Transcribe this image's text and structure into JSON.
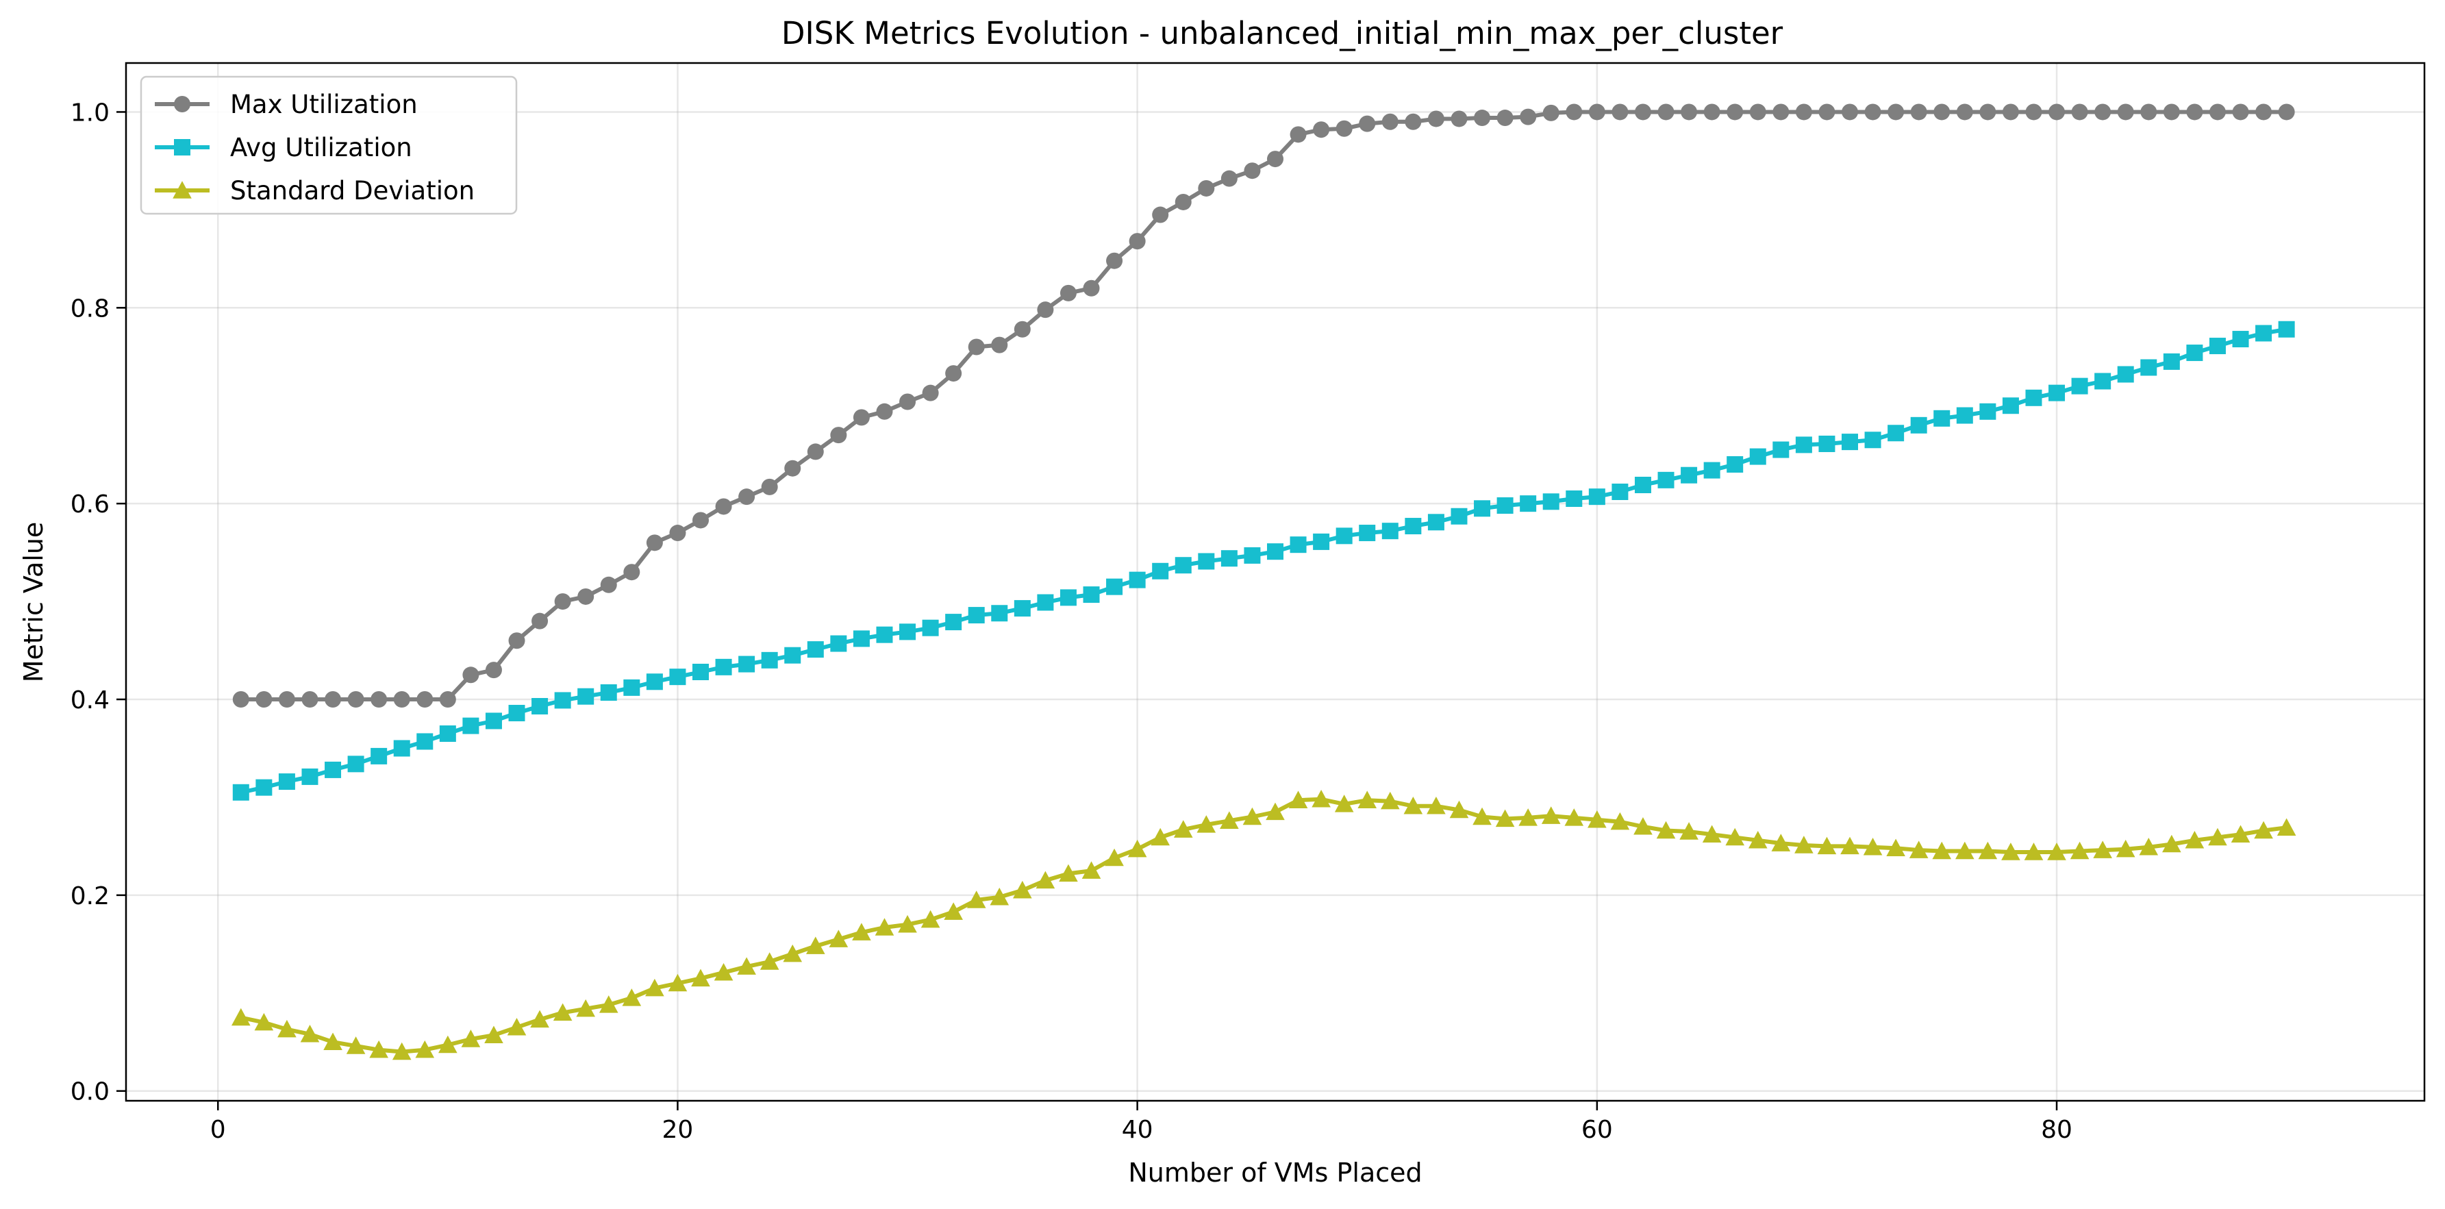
{
  "chart_data": {
    "type": "line",
    "title": "DISK Metrics Evolution - unbalanced_initial_min_max_per_cluster",
    "xlabel": "Number of VMs Placed",
    "ylabel": "Metric Value",
    "xlim": [
      -4.0,
      96.0
    ],
    "ylim": [
      -0.01,
      1.05
    ],
    "xticks": [
      0,
      20,
      40,
      60,
      80
    ],
    "yticks": [
      0.0,
      0.2,
      0.4,
      0.6,
      0.8,
      1.0
    ],
    "xtick_labels": [
      "0",
      "20",
      "40",
      "60",
      "80"
    ],
    "ytick_labels": [
      "0.0",
      "0.2",
      "0.4",
      "0.6",
      "0.8",
      "1.0"
    ],
    "grid": true,
    "legend_position": "top-left",
    "x": [
      1,
      2,
      3,
      4,
      5,
      6,
      7,
      8,
      9,
      10,
      11,
      12,
      13,
      14,
      15,
      16,
      17,
      18,
      19,
      20,
      21,
      22,
      23,
      24,
      25,
      26,
      27,
      28,
      29,
      30,
      31,
      32,
      33,
      34,
      35,
      36,
      37,
      38,
      39,
      40,
      41,
      42,
      43,
      44,
      45,
      46,
      47,
      48,
      49,
      50,
      51,
      52,
      53,
      54,
      55,
      56,
      57,
      58,
      59,
      60,
      61,
      62,
      63,
      64,
      65,
      66,
      67,
      68,
      69,
      70,
      71,
      72,
      73,
      74,
      75,
      76,
      77,
      78,
      79,
      80,
      81,
      82,
      83,
      84,
      85,
      86,
      87,
      88,
      89,
      90
    ],
    "series": [
      {
        "name": "Max Utilization",
        "color": "#7f7f7f",
        "marker": "circle",
        "values": [
          0.4,
          0.4,
          0.4,
          0.4,
          0.4,
          0.4,
          0.4,
          0.4,
          0.4,
          0.4,
          0.425,
          0.43,
          0.46,
          0.48,
          0.5,
          0.505,
          0.517,
          0.53,
          0.56,
          0.57,
          0.583,
          0.597,
          0.607,
          0.617,
          0.636,
          0.653,
          0.67,
          0.688,
          0.694,
          0.704,
          0.713,
          0.733,
          0.76,
          0.762,
          0.778,
          0.798,
          0.815,
          0.82,
          0.848,
          0.868,
          0.895,
          0.908,
          0.922,
          0.932,
          0.94,
          0.952,
          0.977,
          0.982,
          0.983,
          0.988,
          0.99,
          0.99,
          0.993,
          0.993,
          0.994,
          0.994,
          0.995,
          0.999,
          1.0,
          1.0,
          1.0,
          1.0,
          1.0,
          1.0,
          1.0,
          1.0,
          1.0,
          1.0,
          1.0,
          1.0,
          1.0,
          1.0,
          1.0,
          1.0,
          1.0,
          1.0,
          1.0,
          1.0,
          1.0,
          1.0,
          1.0,
          1.0,
          1.0,
          1.0,
          1.0,
          1.0,
          1.0,
          1.0,
          1.0,
          1.0
        ]
      },
      {
        "name": "Avg Utilization",
        "color": "#17becf",
        "marker": "square",
        "values": [
          0.305,
          0.31,
          0.316,
          0.321,
          0.328,
          0.334,
          0.342,
          0.35,
          0.357,
          0.365,
          0.373,
          0.378,
          0.386,
          0.393,
          0.399,
          0.403,
          0.407,
          0.412,
          0.418,
          0.423,
          0.428,
          0.433,
          0.436,
          0.44,
          0.445,
          0.451,
          0.457,
          0.462,
          0.466,
          0.469,
          0.473,
          0.479,
          0.486,
          0.488,
          0.493,
          0.499,
          0.504,
          0.507,
          0.515,
          0.522,
          0.531,
          0.537,
          0.541,
          0.544,
          0.547,
          0.551,
          0.558,
          0.561,
          0.567,
          0.57,
          0.572,
          0.577,
          0.581,
          0.587,
          0.595,
          0.598,
          0.6,
          0.602,
          0.605,
          0.607,
          0.612,
          0.619,
          0.624,
          0.629,
          0.634,
          0.64,
          0.648,
          0.655,
          0.66,
          0.661,
          0.663,
          0.665,
          0.672,
          0.68,
          0.687,
          0.69,
          0.694,
          0.7,
          0.708,
          0.713,
          0.72,
          0.725,
          0.732,
          0.739,
          0.745,
          0.754,
          0.761,
          0.768,
          0.774,
          0.778
        ]
      },
      {
        "name": "Standard Deviation",
        "color": "#bcbd22",
        "marker": "triangle",
        "values": [
          0.075,
          0.07,
          0.063,
          0.058,
          0.05,
          0.046,
          0.042,
          0.04,
          0.042,
          0.047,
          0.053,
          0.057,
          0.065,
          0.073,
          0.08,
          0.084,
          0.088,
          0.095,
          0.105,
          0.11,
          0.115,
          0.121,
          0.127,
          0.132,
          0.14,
          0.148,
          0.155,
          0.162,
          0.167,
          0.17,
          0.175,
          0.183,
          0.195,
          0.198,
          0.205,
          0.215,
          0.222,
          0.225,
          0.238,
          0.247,
          0.259,
          0.267,
          0.272,
          0.276,
          0.28,
          0.285,
          0.297,
          0.298,
          0.293,
          0.297,
          0.296,
          0.291,
          0.291,
          0.287,
          0.28,
          0.278,
          0.279,
          0.281,
          0.279,
          0.277,
          0.275,
          0.27,
          0.266,
          0.265,
          0.262,
          0.259,
          0.256,
          0.253,
          0.251,
          0.25,
          0.25,
          0.249,
          0.248,
          0.246,
          0.245,
          0.245,
          0.245,
          0.244,
          0.244,
          0.244,
          0.245,
          0.246,
          0.247,
          0.249,
          0.252,
          0.256,
          0.259,
          0.262,
          0.266,
          0.269
        ]
      }
    ]
  }
}
